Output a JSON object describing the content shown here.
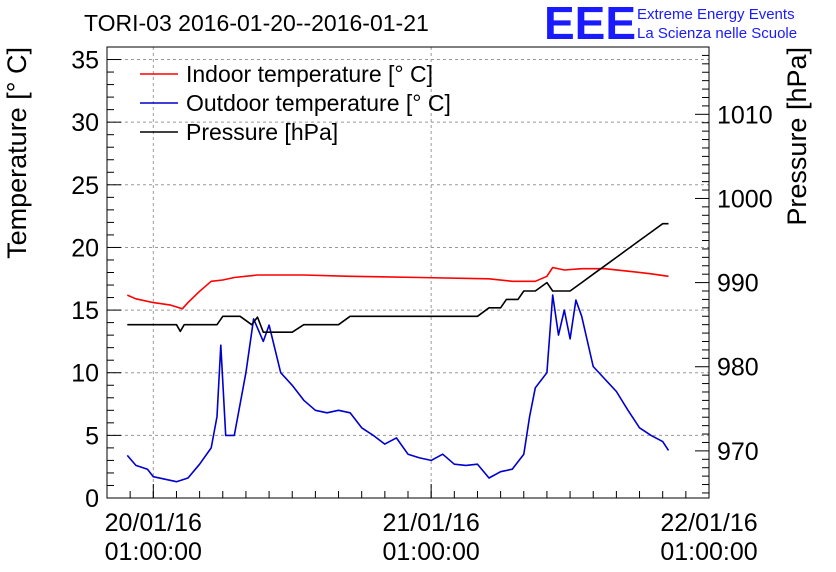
{
  "chart_data": {
    "type": "line",
    "title": "TORI-03 2016-01-20--2016-01-21",
    "ylabel": "Temperature [° C]",
    "y2label": "Pressure [hPa]",
    "ylim": [
      0,
      36
    ],
    "y2lim": [
      964.4,
      1018
    ],
    "yticks": [
      0,
      5,
      10,
      15,
      20,
      25,
      30,
      35
    ],
    "y2ticks": [
      970,
      980,
      990,
      1000,
      1010
    ],
    "xlim": [
      "2016-01-19T21:00",
      "2016-01-22T01:00"
    ],
    "xticks": [
      {
        "date": "20/01/16",
        "time": "01:00:00",
        "x": "2016-01-20T01:00"
      },
      {
        "date": "21/01/16",
        "time": "01:00:00",
        "x": "2016-01-21T01:00"
      },
      {
        "date": "22/01/16",
        "time": "01:00:00",
        "x": "2016-01-22T01:00"
      }
    ],
    "grid": true,
    "legend_position": "top-left",
    "series": [
      {
        "name": "Indoor temperature [° C]",
        "color": "#ff0000",
        "axis": "left",
        "points": [
          [
            "2016-01-19T22:45",
            16.2
          ],
          [
            "2016-01-19T23:30",
            15.9
          ],
          [
            "2016-01-20T01:00",
            15.6
          ],
          [
            "2016-01-20T02:30",
            15.4
          ],
          [
            "2016-01-20T03:30",
            15.1
          ],
          [
            "2016-01-20T04:00",
            15.6
          ],
          [
            "2016-01-20T05:00",
            16.5
          ],
          [
            "2016-01-20T06:00",
            17.3
          ],
          [
            "2016-01-20T07:00",
            17.4
          ],
          [
            "2016-01-20T08:00",
            17.6
          ],
          [
            "2016-01-20T10:00",
            17.8
          ],
          [
            "2016-01-20T14:00",
            17.8
          ],
          [
            "2016-01-20T18:00",
            17.7
          ],
          [
            "2016-01-21T00:00",
            17.6
          ],
          [
            "2016-01-21T06:00",
            17.5
          ],
          [
            "2016-01-21T08:00",
            17.3
          ],
          [
            "2016-01-21T10:00",
            17.3
          ],
          [
            "2016-01-21T11:00",
            17.7
          ],
          [
            "2016-01-21T11:30",
            18.4
          ],
          [
            "2016-01-21T12:30",
            18.2
          ],
          [
            "2016-01-21T14:00",
            18.3
          ],
          [
            "2016-01-21T16:00",
            18.3
          ],
          [
            "2016-01-21T18:00",
            18.1
          ],
          [
            "2016-01-21T20:00",
            17.9
          ],
          [
            "2016-01-21T21:30",
            17.7
          ]
        ]
      },
      {
        "name": "Outdoor temperature [° C]",
        "color": "#0000cc",
        "axis": "left",
        "points": [
          [
            "2016-01-19T22:45",
            3.4
          ],
          [
            "2016-01-19T23:30",
            2.6
          ],
          [
            "2016-01-20T00:30",
            2.3
          ],
          [
            "2016-01-20T01:00",
            1.7
          ],
          [
            "2016-01-20T02:00",
            1.5
          ],
          [
            "2016-01-20T03:00",
            1.3
          ],
          [
            "2016-01-20T04:00",
            1.6
          ],
          [
            "2016-01-20T05:00",
            2.7
          ],
          [
            "2016-01-20T06:00",
            4.0
          ],
          [
            "2016-01-20T06:30",
            6.5
          ],
          [
            "2016-01-20T06:50",
            12.2
          ],
          [
            "2016-01-20T07:15",
            5.0
          ],
          [
            "2016-01-20T08:00",
            5.0
          ],
          [
            "2016-01-20T09:00",
            10.0
          ],
          [
            "2016-01-20T09:40",
            14.3
          ],
          [
            "2016-01-20T10:30",
            12.5
          ],
          [
            "2016-01-20T11:00",
            13.8
          ],
          [
            "2016-01-20T12:00",
            10.0
          ],
          [
            "2016-01-20T13:00",
            9.0
          ],
          [
            "2016-01-20T14:00",
            7.8
          ],
          [
            "2016-01-20T15:00",
            7.0
          ],
          [
            "2016-01-20T16:00",
            6.8
          ],
          [
            "2016-01-20T17:00",
            7.0
          ],
          [
            "2016-01-20T18:00",
            6.8
          ],
          [
            "2016-01-20T19:00",
            5.6
          ],
          [
            "2016-01-20T20:00",
            5.0
          ],
          [
            "2016-01-20T21:00",
            4.3
          ],
          [
            "2016-01-20T22:00",
            4.8
          ],
          [
            "2016-01-20T23:00",
            3.5
          ],
          [
            "2016-01-21T00:00",
            3.2
          ],
          [
            "2016-01-21T01:00",
            3.0
          ],
          [
            "2016-01-21T02:00",
            3.5
          ],
          [
            "2016-01-21T03:00",
            2.7
          ],
          [
            "2016-01-21T04:00",
            2.6
          ],
          [
            "2016-01-21T05:00",
            2.7
          ],
          [
            "2016-01-21T06:00",
            1.6
          ],
          [
            "2016-01-21T07:00",
            2.1
          ],
          [
            "2016-01-21T08:00",
            2.3
          ],
          [
            "2016-01-21T09:00",
            3.5
          ],
          [
            "2016-01-21T09:30",
            6.5
          ],
          [
            "2016-01-21T10:00",
            8.8
          ],
          [
            "2016-01-21T11:00",
            10.0
          ],
          [
            "2016-01-21T11:30",
            16.2
          ],
          [
            "2016-01-21T12:00",
            13.0
          ],
          [
            "2016-01-21T12:30",
            15.0
          ],
          [
            "2016-01-21T13:00",
            12.7
          ],
          [
            "2016-01-21T13:30",
            15.8
          ],
          [
            "2016-01-21T14:00",
            14.5
          ],
          [
            "2016-01-21T15:00",
            10.5
          ],
          [
            "2016-01-21T16:00",
            9.5
          ],
          [
            "2016-01-21T17:00",
            8.5
          ],
          [
            "2016-01-21T18:00",
            7.0
          ],
          [
            "2016-01-21T19:00",
            5.6
          ],
          [
            "2016-01-21T20:00",
            5.0
          ],
          [
            "2016-01-21T21:00",
            4.5
          ],
          [
            "2016-01-21T21:30",
            3.8
          ]
        ]
      },
      {
        "name": "Pressure [hPa]",
        "color": "#000000",
        "axis": "right",
        "points": [
          [
            "2016-01-19T22:45",
            985.0
          ],
          [
            "2016-01-20T03:00",
            985.0
          ],
          [
            "2016-01-20T03:20",
            984.2
          ],
          [
            "2016-01-20T03:40",
            985.0
          ],
          [
            "2016-01-20T06:30",
            985.0
          ],
          [
            "2016-01-20T07:00",
            986.0
          ],
          [
            "2016-01-20T08:30",
            986.0
          ],
          [
            "2016-01-20T09:30",
            985.0
          ],
          [
            "2016-01-20T10:00",
            985.9
          ],
          [
            "2016-01-20T10:30",
            984.1
          ],
          [
            "2016-01-20T13:00",
            984.1
          ],
          [
            "2016-01-20T14:00",
            985.0
          ],
          [
            "2016-01-20T17:00",
            985.0
          ],
          [
            "2016-01-20T18:00",
            986.0
          ],
          [
            "2016-01-21T05:00",
            986.0
          ],
          [
            "2016-01-21T06:00",
            987.0
          ],
          [
            "2016-01-21T07:00",
            987.0
          ],
          [
            "2016-01-21T07:30",
            988.0
          ],
          [
            "2016-01-21T08:30",
            988.0
          ],
          [
            "2016-01-21T09:00",
            989.0
          ],
          [
            "2016-01-21T10:00",
            989.0
          ],
          [
            "2016-01-21T11:00",
            990.0
          ],
          [
            "2016-01-21T11:30",
            989.0
          ],
          [
            "2016-01-21T13:00",
            989.0
          ],
          [
            "2016-01-21T14:00",
            990.0
          ],
          [
            "2016-01-21T15:00",
            991.0
          ],
          [
            "2016-01-21T16:00",
            992.0
          ],
          [
            "2016-01-21T17:00",
            993.0
          ],
          [
            "2016-01-21T18:00",
            994.0
          ],
          [
            "2016-01-21T19:00",
            995.0
          ],
          [
            "2016-01-21T20:00",
            996.0
          ],
          [
            "2016-01-21T21:00",
            997.0
          ],
          [
            "2016-01-21T21:30",
            997.0
          ]
        ]
      }
    ]
  },
  "logo": {
    "text": "EEE",
    "line1": "Extreme Energy Events",
    "line2": "La Scienza nelle Scuole",
    "color": "#1a1aff"
  }
}
